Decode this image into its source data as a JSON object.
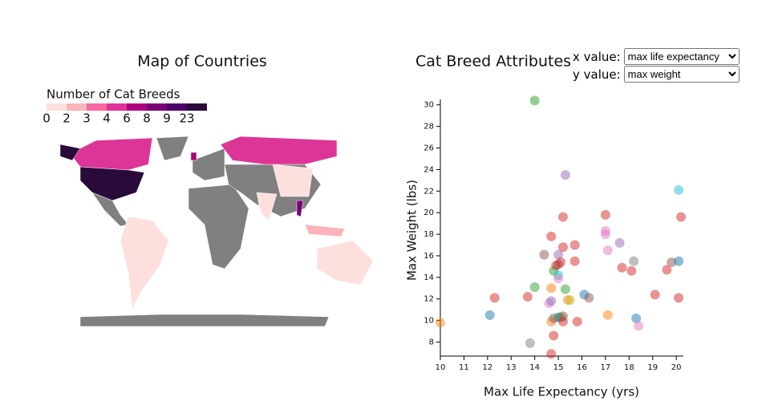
{
  "chart_data": [
    {
      "type": "choropleth",
      "title": "Map of Countries",
      "legend_title": "Number of Cat Breeds",
      "legend_values": [
        0,
        2,
        3,
        4,
        6,
        8,
        9,
        23
      ],
      "legend_colors": [
        "#fde0dd",
        "#fbb4b9",
        "#f768a1",
        "#dd3497",
        "#ae017e",
        "#7a0177",
        "#49006a",
        "#2a0a3a"
      ]
    },
    {
      "type": "scatter",
      "title": "Cat Breed Attributes",
      "xlabel": "Max Life Expectancy (yrs)",
      "ylabel": "Max Weight (lbs)",
      "xlim": [
        10,
        20.3
      ],
      "ylim": [
        6.7,
        30.5
      ],
      "xticks": [
        10,
        11,
        12,
        13,
        14,
        15,
        16,
        17,
        18,
        19,
        20
      ],
      "yticks": [
        8,
        10,
        12,
        14,
        16,
        18,
        20,
        22,
        24,
        26,
        28,
        30
      ],
      "x": [
        10,
        12.1,
        12.3,
        13.7,
        13.8,
        14,
        14,
        14.4,
        14.6,
        14.7,
        14.7,
        14.7,
        14.7,
        14.7,
        14.8,
        14.8,
        14.8,
        14.9,
        15,
        15,
        15,
        15,
        15,
        15.1,
        15.1,
        15.2,
        15.2,
        15.2,
        15.2,
        15.3,
        15.3,
        15.4,
        15.5,
        15.7,
        15.7,
        15.8,
        16.1,
        16.3,
        17,
        17,
        17,
        17.1,
        17.1,
        17.6,
        17.7,
        18.1,
        18.2,
        18.3,
        18.4,
        19.1,
        19.6,
        19.8,
        20.1,
        20.1,
        20.1,
        20.2
      ],
      "values": [
        9.8,
        10.5,
        12.1,
        12.2,
        7.9,
        30.4,
        13.1,
        16.1,
        11.6,
        6.9,
        17.8,
        13,
        11.8,
        9.9,
        8.6,
        10.2,
        14.6,
        15.1,
        15.2,
        14.2,
        13.9,
        16.1,
        10.3,
        15.4,
        10.3,
        19.6,
        10.4,
        16.8,
        9.9,
        23.5,
        12.9,
        11.9,
        11.9,
        17,
        15.5,
        9.9,
        12.4,
        12.1,
        19.8,
        18.3,
        18,
        16.5,
        10.5,
        17.2,
        14.9,
        14.6,
        15.5,
        10.2,
        9.5,
        12.4,
        14.7,
        15.4,
        12.1,
        22.1,
        15.5,
        19.6
      ],
      "colors": [
        "#ff7f0e",
        "#1f77b4",
        "#d62728",
        "#d62728",
        "#7f7f7f",
        "#2ca02c",
        "#2ca02c",
        "#8c564b",
        "#e377c2",
        "#d62728",
        "#d62728",
        "#ff7f0e",
        "#9467bd",
        "#ff7f0e",
        "#d62728",
        "#8c564b",
        "#2ca02c",
        "#d62728",
        "#8c564b",
        "#17becf",
        "#e377c2",
        "#9467bd",
        "#1f77b4",
        "#d62728",
        "#2ca02c",
        "#d62728",
        "#8c564b",
        "#d62728",
        "#d62728",
        "#9467bd",
        "#2ca02c",
        "#ff7f0e",
        "#bcbd22",
        "#d62728",
        "#d62728",
        "#d62728",
        "#1f77b4",
        "#8c564b",
        "#d62728",
        "#e377c2",
        "#e377c2",
        "#e377c2",
        "#ff7f0e",
        "#9467bd",
        "#d62728",
        "#d62728",
        "#7f7f7f",
        "#1f77b4",
        "#e377c2",
        "#d62728",
        "#d62728",
        "#8c564b",
        "#d62728",
        "#17becf",
        "#1f77b4",
        "#d62728"
      ]
    }
  ],
  "controls": [
    {
      "label": "x value:",
      "selected": "max life expectancy"
    },
    {
      "label": "y value:",
      "selected": "max weight"
    }
  ]
}
